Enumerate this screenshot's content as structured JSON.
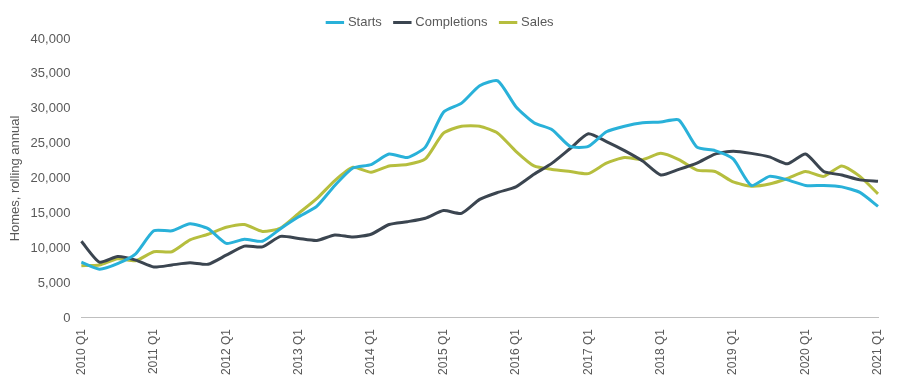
{
  "chart_data": {
    "type": "line",
    "y_label": "Homes, rolling annual",
    "categories": [
      "2010 Q1",
      null,
      null,
      null,
      "2011 Q1",
      null,
      null,
      null,
      "2012 Q1",
      null,
      null,
      null,
      "2013 Q1",
      null,
      null,
      null,
      "2014 Q1",
      null,
      null,
      null,
      "2015 Q1",
      null,
      null,
      null,
      "2016 Q1",
      null,
      null,
      null,
      "2017 Q1",
      null,
      null,
      null,
      "2018 Q1",
      null,
      null,
      null,
      "2019 Q1",
      null,
      null,
      null,
      "2020 Q1",
      null,
      null,
      null,
      "2021 Q1"
    ],
    "series": [
      {
        "name": "Starts",
        "color": "#29b1d9",
        "values": [
          8000,
          7000,
          7800,
          9200,
          12500,
          12500,
          13500,
          12800,
          10700,
          11300,
          11000,
          12800,
          14500,
          16000,
          19000,
          21500,
          22000,
          23500,
          23000,
          24500,
          29500,
          30800,
          33300,
          34000,
          30300,
          28000,
          27000,
          24600,
          24600,
          26700,
          27500,
          28000,
          28100,
          28400,
          24500,
          24000,
          22800,
          19000,
          20300,
          19800,
          19000,
          19000,
          18800,
          18000,
          16000
        ]
      },
      {
        "name": "Completions",
        "color": "#3b4550",
        "values": [
          11000,
          8000,
          8800,
          8300,
          7300,
          7600,
          7900,
          7700,
          9000,
          10300,
          10200,
          11700,
          11400,
          11100,
          11900,
          11600,
          12000,
          13400,
          13800,
          14300,
          15400,
          15000,
          17000,
          18000,
          18800,
          20600,
          22200,
          24300,
          26400,
          25300,
          24000,
          22500,
          20500,
          21300,
          22200,
          23500,
          23900,
          23600,
          23100,
          22100,
          23500,
          21000,
          20500,
          19800,
          19600
        ]
      },
      {
        "name": "Sales",
        "color": "#b6be3e",
        "values": [
          7500,
          7600,
          8500,
          8200,
          9500,
          9500,
          11200,
          12000,
          13000,
          13400,
          12400,
          12900,
          15000,
          17100,
          19700,
          21600,
          20900,
          21800,
          22000,
          22800,
          26500,
          27500,
          27500,
          26500,
          23900,
          21800,
          21300,
          21000,
          20700,
          22200,
          23000,
          22700,
          23600,
          22700,
          21200,
          21000,
          19500,
          18900,
          19200,
          20000,
          21000,
          20300,
          21800,
          20300,
          17800
        ]
      }
    ],
    "ylim": [
      0,
      40000
    ],
    "yticks": [
      0,
      {
        "value": 5000,
        "label": "5,000"
      },
      {
        "value": 10000,
        "label": "10,000"
      },
      {
        "value": 15000,
        "label": "15,000"
      },
      {
        "value": 20000,
        "label": "20,000"
      },
      {
        "value": 25000,
        "label": "25,000"
      },
      {
        "value": 30000,
        "label": "30,000"
      },
      {
        "value": 35000,
        "label": "35,000"
      },
      {
        "value": 40000,
        "label": "40,000"
      }
    ],
    "grid": false,
    "legend": "top"
  }
}
